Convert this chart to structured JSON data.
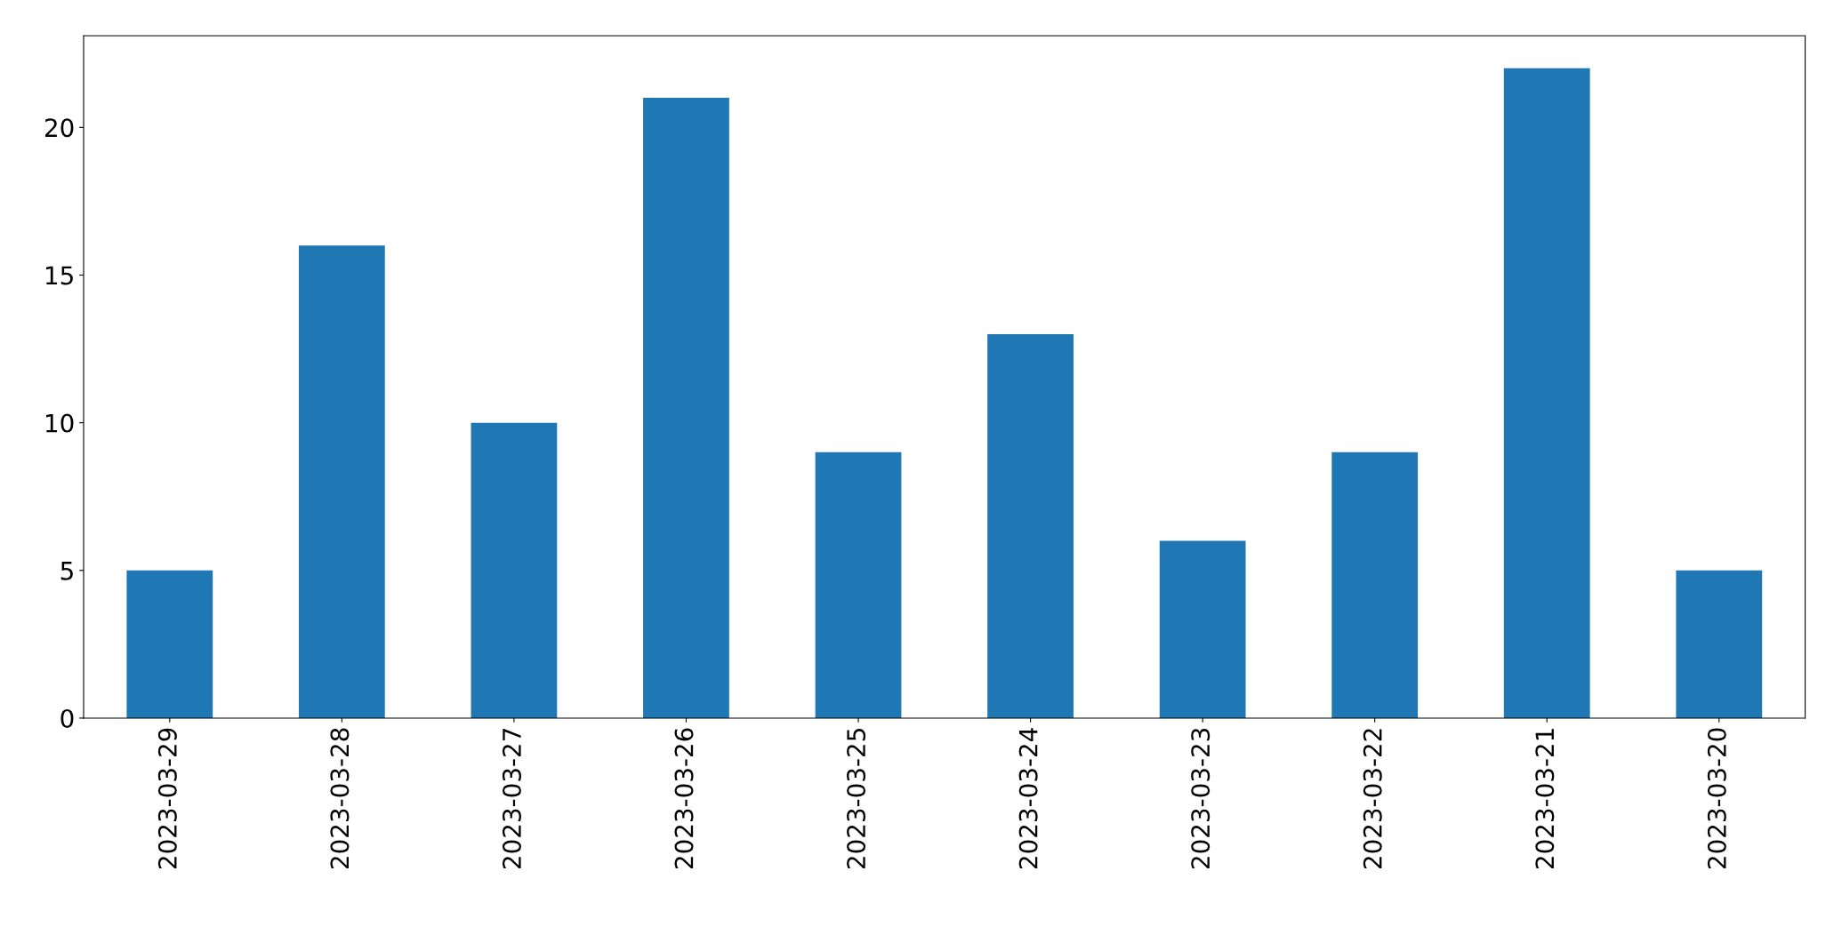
{
  "chart_data": {
    "type": "bar",
    "categories": [
      "2023-03-29",
      "2023-03-28",
      "2023-03-27",
      "2023-03-26",
      "2023-03-25",
      "2023-03-24",
      "2023-03-23",
      "2023-03-22",
      "2023-03-21",
      "2023-03-20"
    ],
    "values": [
      5,
      16,
      10,
      21,
      9,
      13,
      6,
      9,
      22,
      5
    ],
    "color": "#1f77b4",
    "ylim": [
      0,
      23.1
    ],
    "yticks": [
      0,
      5,
      10,
      15,
      20
    ],
    "grid": false,
    "legend": false
  }
}
